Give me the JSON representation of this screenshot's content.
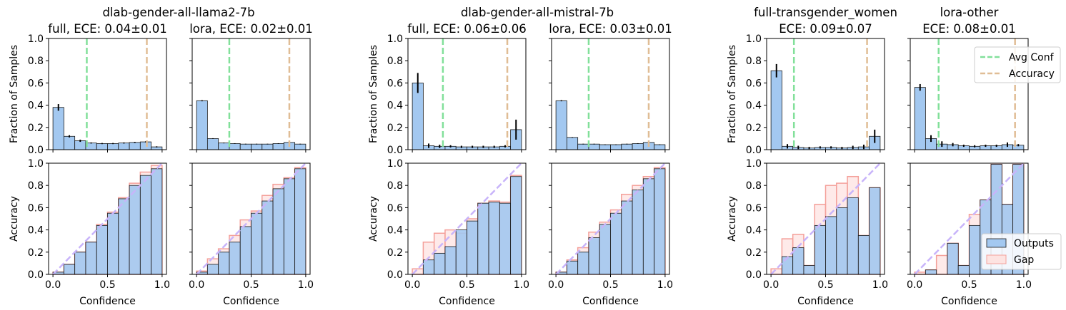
{
  "colors": {
    "outputs": "#a3c8f0",
    "gap": "#fde3e1",
    "gap_edge": "#f4a09a",
    "avg_conf": "#82e09a",
    "accuracy": "#e0bd95",
    "diagonal": "#c8b4fa",
    "edge": "#1a1a1a"
  },
  "groups": [
    {
      "title": "dlab-gender-all-llama2-7b"
    },
    {
      "title": "dlab-gender-all-mistral-7b"
    }
  ],
  "labels": {
    "ylabel_hist": "Fraction of Samples",
    "ylabel_rel": "Accuracy",
    "xlabel": "Confidence",
    "yticks": [
      "0.0",
      "0.2",
      "0.4",
      "0.6",
      "0.8",
      "1.0"
    ],
    "xticks": [
      "0.0",
      "0.5",
      "1.0"
    ]
  },
  "legend_hist": [
    "Avg Conf",
    "Accuracy"
  ],
  "legend_rel": [
    "Outputs",
    "Gap"
  ],
  "chart_data": [
    {
      "type": "bar",
      "title": "full, ECE: 0.04±0.01",
      "bins": [
        0.0,
        0.1,
        0.2,
        0.3,
        0.4,
        0.5,
        0.6,
        0.7,
        0.8,
        0.9
      ],
      "fraction": [
        0.38,
        0.12,
        0.08,
        0.06,
        0.055,
        0.055,
        0.06,
        0.065,
        0.07,
        0.025
      ],
      "fraction_err": [
        0.03,
        0.01,
        0.01,
        0.005,
        0.005,
        0.005,
        0.005,
        0.005,
        0.005,
        0.005
      ],
      "avg_conf": 0.31,
      "accuracy": 0.86,
      "bin_accuracy": [
        0.02,
        0.09,
        0.2,
        0.29,
        0.44,
        0.55,
        0.68,
        0.8,
        0.89,
        0.95
      ],
      "gap_accuracy": [
        0.02,
        0.09,
        0.2,
        0.29,
        0.45,
        0.56,
        0.69,
        0.82,
        0.92,
        0.98
      ]
    },
    {
      "type": "bar",
      "title": "lora, ECE: 0.02±0.01",
      "bins": [
        0.0,
        0.1,
        0.2,
        0.3,
        0.4,
        0.5,
        0.6,
        0.7,
        0.8,
        0.9
      ],
      "fraction": [
        0.44,
        0.1,
        0.06,
        0.055,
        0.05,
        0.05,
        0.05,
        0.055,
        0.065,
        0.05
      ],
      "fraction_err": [
        0.005,
        0.003,
        0.003,
        0.003,
        0.003,
        0.003,
        0.003,
        0.003,
        0.003,
        0.003
      ],
      "avg_conf": 0.3,
      "accuracy": 0.85,
      "bin_accuracy": [
        0.02,
        0.09,
        0.2,
        0.29,
        0.43,
        0.55,
        0.66,
        0.77,
        0.86,
        0.95
      ],
      "gap_accuracy": [
        0.03,
        0.14,
        0.23,
        0.35,
        0.49,
        0.57,
        0.71,
        0.81,
        0.87,
        0.96
      ]
    },
    {
      "type": "bar",
      "title": "full, ECE: 0.06±0.06",
      "bins": [
        0.0,
        0.1,
        0.2,
        0.3,
        0.4,
        0.5,
        0.6,
        0.7,
        0.8,
        0.9
      ],
      "fraction": [
        0.6,
        0.035,
        0.03,
        0.03,
        0.025,
        0.025,
        0.025,
        0.025,
        0.03,
        0.18
      ],
      "fraction_err": [
        0.09,
        0.02,
        0.015,
        0.01,
        0.01,
        0.01,
        0.01,
        0.01,
        0.01,
        0.09
      ],
      "avg_conf": 0.28,
      "accuracy": 0.87,
      "bin_accuracy": [
        0.0,
        0.13,
        0.19,
        0.25,
        0.4,
        0.48,
        0.64,
        0.65,
        0.64,
        0.88
      ],
      "gap_accuracy": [
        0.05,
        0.29,
        0.37,
        0.4,
        0.37,
        0.5,
        0.64,
        0.66,
        0.65,
        0.89
      ]
    },
    {
      "type": "bar",
      "title": "lora, ECE: 0.03±0.01",
      "bins": [
        0.0,
        0.1,
        0.2,
        0.3,
        0.4,
        0.5,
        0.6,
        0.7,
        0.8,
        0.9
      ],
      "fraction": [
        0.44,
        0.11,
        0.05,
        0.05,
        0.045,
        0.045,
        0.05,
        0.055,
        0.065,
        0.045
      ],
      "fraction_err": [
        0.005,
        0.003,
        0.003,
        0.003,
        0.003,
        0.003,
        0.003,
        0.003,
        0.003,
        0.003
      ],
      "avg_conf": 0.3,
      "accuracy": 0.85,
      "bin_accuracy": [
        0.02,
        0.12,
        0.2,
        0.33,
        0.45,
        0.55,
        0.66,
        0.76,
        0.86,
        0.95
      ],
      "gap_accuracy": [
        0.02,
        0.13,
        0.24,
        0.38,
        0.47,
        0.58,
        0.72,
        0.8,
        0.88,
        0.96
      ]
    },
    {
      "type": "bar",
      "title": "full-transgender_women\nECE: 0.09±0.07",
      "bins": [
        0.0,
        0.1,
        0.2,
        0.3,
        0.4,
        0.5,
        0.6,
        0.7,
        0.8,
        0.9
      ],
      "fraction": [
        0.71,
        0.03,
        0.02,
        0.015,
        0.02,
        0.02,
        0.015,
        0.02,
        0.025,
        0.12
      ],
      "fraction_err": [
        0.06,
        0.02,
        0.015,
        0.01,
        0.01,
        0.01,
        0.01,
        0.015,
        0.02,
        0.06
      ],
      "avg_conf": 0.21,
      "accuracy": 0.88,
      "bin_accuracy": [
        0.0,
        0.16,
        0.24,
        0.08,
        0.44,
        0.52,
        0.6,
        0.69,
        0.35,
        0.78
      ],
      "gap_accuracy": [
        0.05,
        0.32,
        0.36,
        0.08,
        0.63,
        0.8,
        0.82,
        0.88,
        0.35,
        0.78
      ]
    },
    {
      "type": "bar",
      "title": "lora-other\nECE: 0.08±0.01",
      "bins": [
        0.0,
        0.1,
        0.2,
        0.3,
        0.4,
        0.5,
        0.6,
        0.7,
        0.8,
        0.9
      ],
      "fraction": [
        0.56,
        0.1,
        0.05,
        0.045,
        0.035,
        0.03,
        0.035,
        0.035,
        0.045,
        0.04
      ],
      "fraction_err": [
        0.03,
        0.03,
        0.025,
        0.015,
        0.01,
        0.01,
        0.01,
        0.01,
        0.02,
        0.01
      ],
      "avg_conf": 0.22,
      "accuracy": 0.92,
      "bin_accuracy": [
        0.0,
        0.04,
        0.0,
        0.28,
        0.08,
        0.44,
        0.67,
        0.99,
        0.63,
        0.99
      ],
      "gap_accuracy": [
        0.02,
        0.04,
        0.17,
        0.28,
        0.08,
        0.54,
        0.67,
        0.99,
        0.63,
        0.99
      ]
    }
  ]
}
